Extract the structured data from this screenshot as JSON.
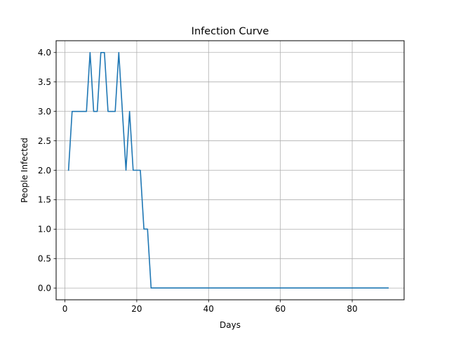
{
  "chart_data": {
    "type": "line",
    "title": "Infection Curve",
    "xlabel": "Days",
    "ylabel": "People Infected",
    "xlim": [
      -2.45,
      94.45
    ],
    "ylim": [
      -0.2,
      4.2
    ],
    "x_ticks": [
      0,
      20,
      40,
      60,
      80
    ],
    "x_tick_labels": [
      "0",
      "20",
      "40",
      "60",
      "80"
    ],
    "y_ticks": [
      0.0,
      0.5,
      1.0,
      1.5,
      2.0,
      2.5,
      3.0,
      3.5,
      4.0
    ],
    "y_tick_labels": [
      "0.0",
      "0.5",
      "1.0",
      "1.5",
      "2.0",
      "2.5",
      "3.0",
      "3.5",
      "4.0"
    ],
    "grid": true,
    "line_color": "#1f77b4",
    "series": [
      {
        "x": [
          1,
          2,
          3,
          4,
          5,
          6,
          7,
          8,
          9,
          10,
          11,
          12,
          13,
          14,
          15,
          16,
          17,
          18,
          19,
          20,
          21,
          22,
          23,
          24,
          25,
          26,
          27,
          28,
          29,
          30,
          31,
          32,
          33,
          34,
          35,
          36,
          37,
          38,
          39,
          40,
          41,
          42,
          43,
          44,
          45,
          46,
          47,
          48,
          49,
          50,
          51,
          52,
          53,
          54,
          55,
          56,
          57,
          58,
          59,
          60,
          61,
          62,
          63,
          64,
          65,
          66,
          67,
          68,
          69,
          70,
          71,
          72,
          73,
          74,
          75,
          76,
          77,
          78,
          79,
          80,
          81,
          82,
          83,
          84,
          85,
          86,
          87,
          88,
          89,
          90
        ],
        "values": [
          2,
          3,
          3,
          3,
          3,
          3,
          4,
          3,
          3,
          4,
          4,
          3,
          3,
          3,
          4,
          3,
          2,
          3,
          2,
          2,
          2,
          1,
          1,
          0,
          0,
          0,
          0,
          0,
          0,
          0,
          0,
          0,
          0,
          0,
          0,
          0,
          0,
          0,
          0,
          0,
          0,
          0,
          0,
          0,
          0,
          0,
          0,
          0,
          0,
          0,
          0,
          0,
          0,
          0,
          0,
          0,
          0,
          0,
          0,
          0,
          0,
          0,
          0,
          0,
          0,
          0,
          0,
          0,
          0,
          0,
          0,
          0,
          0,
          0,
          0,
          0,
          0,
          0,
          0,
          0,
          0,
          0,
          0,
          0,
          0,
          0,
          0,
          0,
          0,
          0
        ]
      }
    ]
  }
}
